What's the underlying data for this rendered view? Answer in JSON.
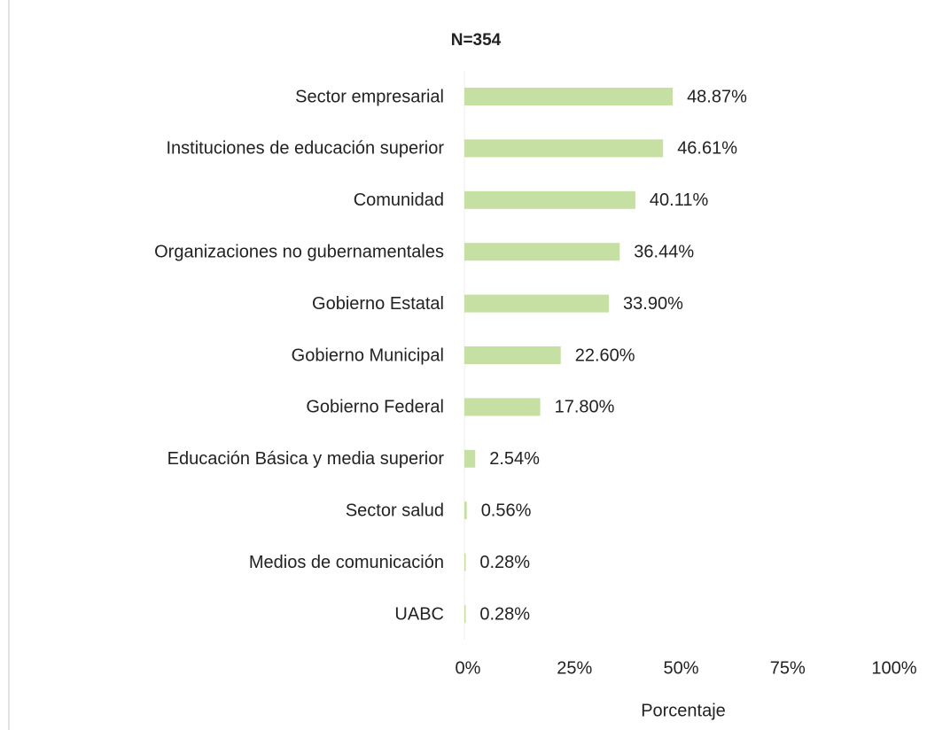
{
  "chart_data": {
    "type": "barh",
    "title": "N=354",
    "x_label": "Porcentaje",
    "categories": [
      "Sector empresarial",
      "Instituciones de educación superior",
      "Comunidad",
      "Organizaciones no gubernamentales",
      "Gobierno Estatal",
      "Gobierno Municipal",
      "Gobierno Federal",
      "Educación Básica y media superior",
      "Sector salud",
      "Medios de comunicación",
      "UABC"
    ],
    "values": [
      48.87,
      46.61,
      40.11,
      36.44,
      33.9,
      22.6,
      17.8,
      2.54,
      0.56,
      0.28,
      0.28
    ],
    "value_labels": [
      "48.87%",
      "46.61%",
      "40.11%",
      "36.44%",
      "33.90%",
      "22.60%",
      "17.80%",
      "2.54%",
      "0.56%",
      "0.28%",
      "0.28%"
    ],
    "color": "#c6e0a4",
    "xlim": [
      0,
      100
    ],
    "xticks": [
      {
        "value": 0,
        "label": "0%"
      },
      {
        "value": 25,
        "label": "25%"
      },
      {
        "value": 50,
        "label": "50%"
      },
      {
        "value": 75,
        "label": "75%"
      },
      {
        "value": 100,
        "label": "100%"
      }
    ],
    "grid": false
  }
}
